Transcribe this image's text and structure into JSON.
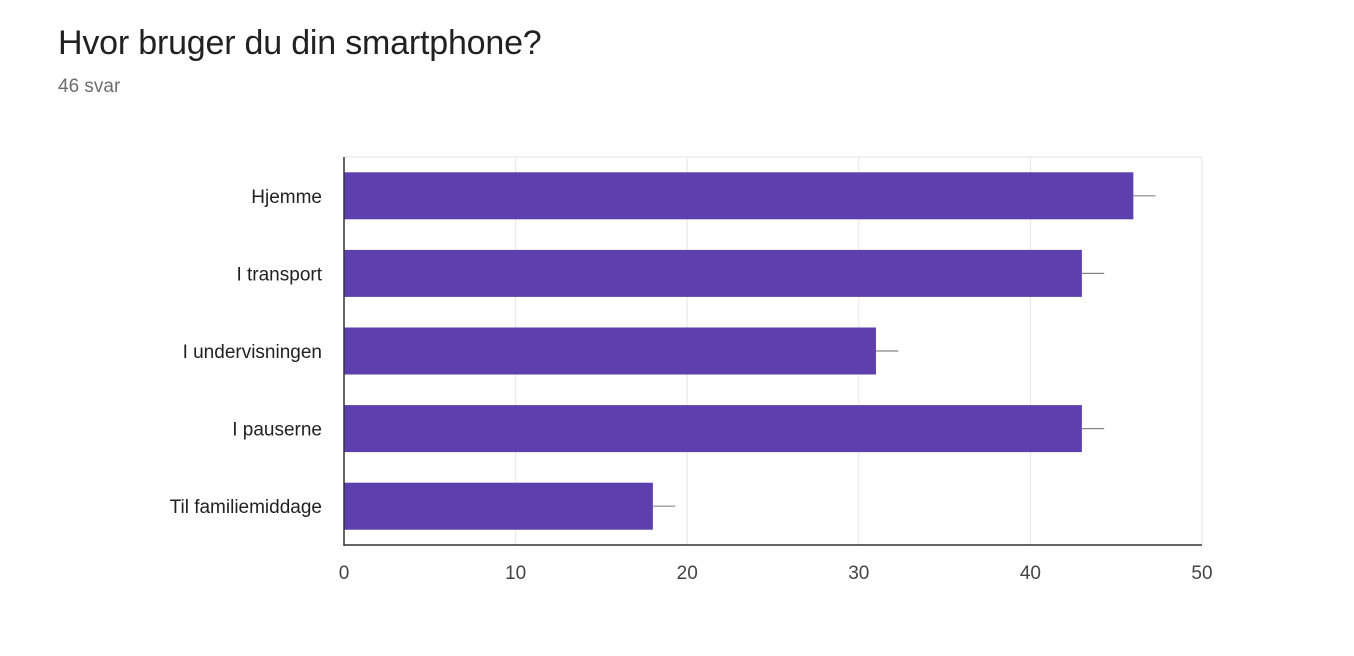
{
  "header": {
    "question": "Hvor bruger du din smartphone?",
    "responses": "46 svar"
  },
  "colors": {
    "bar": "#5e3fae",
    "grid": "#e6e6e6",
    "axis": "#333333",
    "error_bar": "#888888"
  },
  "chart_data": {
    "type": "bar",
    "orientation": "horizontal",
    "categories": [
      "Hjemme",
      "I transport",
      "I undervisningen",
      "I pauserne",
      "Til familiemiddage"
    ],
    "values": [
      46,
      43,
      31,
      43,
      18
    ],
    "error_upper": [
      47.3,
      44.3,
      32.3,
      44.3,
      19.3
    ],
    "xlim": [
      0,
      50
    ],
    "xticks": [
      0,
      10,
      20,
      30,
      40,
      50
    ],
    "grid": true,
    "legend": "none"
  }
}
